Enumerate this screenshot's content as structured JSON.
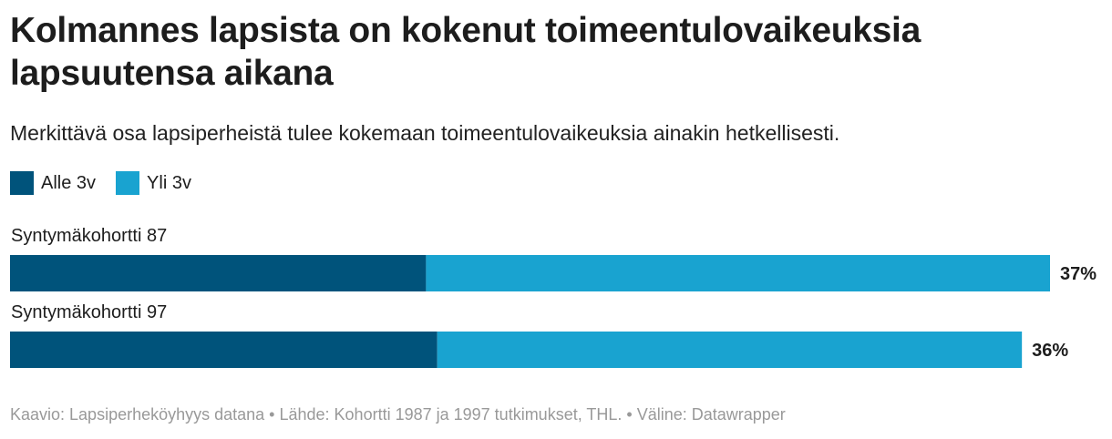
{
  "header": {
    "title": "Kolmannes lapsista on kokenut toimeentulovaikeuksia lapsuutensa aikana",
    "subtitle": "Merkittävä osa lapsiperheistä tulee kokemaan toimeentulovaikeuksia ainakin hetkellisesti."
  },
  "legend": [
    {
      "label": "Alle 3v",
      "color": "#00537b"
    },
    {
      "label": "Yli 3v",
      "color": "#19a3d0"
    }
  ],
  "chart_data": {
    "type": "bar",
    "orientation": "horizontal",
    "stacked": true,
    "categories": [
      "Syntymäkohortti 87",
      "Syntymäkohortti 97"
    ],
    "series": [
      {
        "name": "Alle 3v",
        "color": "#00537b",
        "values": [
          14.8,
          15.2
        ]
      },
      {
        "name": "Yli 3v",
        "color": "#19a3d0",
        "values": [
          22.2,
          20.8
        ]
      }
    ],
    "total_labels": [
      "37%",
      "36%"
    ],
    "xlim": [
      0,
      37
    ],
    "grid": false,
    "legend_position": "top-left"
  },
  "footer": {
    "credit": "Kaavio: Lapsiperheköyhyys datana • Lähde: Kohortti 1987 ja 1997 tutkimukset, THL. • Väline: Datawrapper"
  }
}
